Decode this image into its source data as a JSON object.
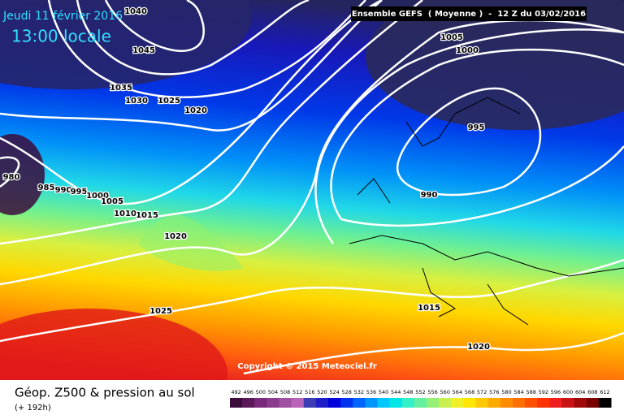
{
  "header": {
    "date": "Jeudi 11 février 2016",
    "time": "13:00 locale",
    "run": "Ensemble GEFS  ( Moyenne )  -  12 Z du 03/02/2016"
  },
  "isobar_labels": [
    "1040",
    "1045",
    "1035",
    "1030",
    "1025",
    "1020",
    "980",
    "985",
    "990",
    "995",
    "1000",
    "1005",
    "1010",
    "1015",
    "1020",
    "1025",
    "1005",
    "1000",
    "995",
    "990",
    "1015",
    "1020"
  ],
  "copyright": "Copyright © 2015 Meteociel.fr",
  "footer": {
    "title": "Géop. Z500 & pression au sol",
    "subtitle": "(+ 192h)"
  },
  "scale": {
    "labels": [
      "492",
      "496",
      "500",
      "504",
      "508",
      "512",
      "516",
      "520",
      "524",
      "528",
      "532",
      "536",
      "540",
      "544",
      "548",
      "552",
      "556",
      "560",
      "564",
      "568",
      "572",
      "576",
      "580",
      "584",
      "588",
      "592",
      "596",
      "600",
      "604",
      "608",
      "612"
    ],
    "colors": [
      "#3c0c3c",
      "#5a1a5a",
      "#7a2a7a",
      "#8c3c8c",
      "#a050a0",
      "#b864b8",
      "#3c3cb4",
      "#1e1ec8",
      "#0000dc",
      "#0032f0",
      "#0064ff",
      "#0096ff",
      "#00c8ff",
      "#00e6e6",
      "#32f0c8",
      "#64f0a0",
      "#96f078",
      "#c8f050",
      "#f0f028",
      "#ffe600",
      "#ffc800",
      "#ffaa00",
      "#ff8c00",
      "#ff6e00",
      "#ff5000",
      "#ff3200",
      "#f01e1e",
      "#c81414",
      "#a00a0a",
      "#780000",
      "#000000"
    ]
  }
}
